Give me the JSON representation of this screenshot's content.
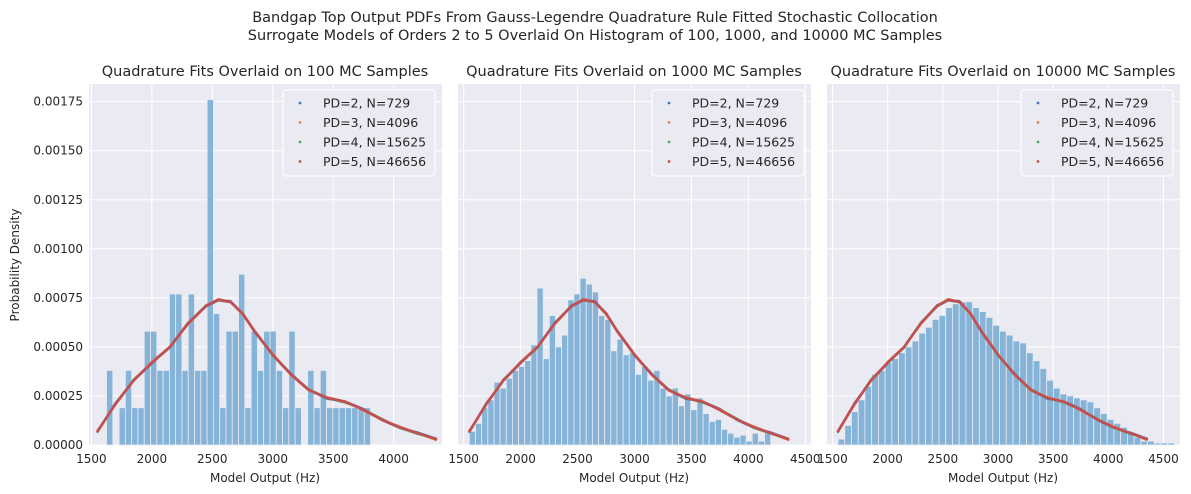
{
  "figure": {
    "suptitle_line1": "Bandgap Top Output PDFs From Gauss-Legendre Quadrature Rule Fitted Stochastic Collocation",
    "suptitle_line2": "Surrogate Models of Orders 2 to 5 Overlaid On Histogram of 100, 1000, and 10000 MC Samples"
  },
  "colors": {
    "background": "#eaeaf2",
    "grid": "#ffffff",
    "histogram": "#86b4d8",
    "series": [
      "#4c72b0",
      "#dd8452",
      "#55a868",
      "#c44e52"
    ]
  },
  "legend_placement": "top-right",
  "chart_data": [
    {
      "type": "bar",
      "title": "Quadrature Fits Overlaid on 100 MC Samples",
      "xlabel": "Model Output (Hz)",
      "ylabel": "Probability Density",
      "xlim": [
        1480,
        4400
      ],
      "ylim": [
        0,
        0.00184
      ],
      "xticks": [
        "1500",
        "2000",
        "2500",
        "3000",
        "3500",
        "4000"
      ],
      "xtick_values": [
        1500,
        2000,
        2500,
        3000,
        3500,
        4000
      ],
      "yticks": [
        "0.00000",
        "0.00025",
        "0.00050",
        "0.00075",
        "0.00100",
        "0.00125",
        "0.00150",
        "0.00175"
      ],
      "ytick_values": [
        0,
        0.00025,
        0.0005,
        0.00075,
        0.001,
        0.00125,
        0.0015,
        0.00175
      ],
      "grid": true,
      "histogram": {
        "bin_start": 1625,
        "bin_width": 52,
        "values": [
          0.00038,
          0,
          0.00019,
          0.00038,
          0.00019,
          0.00019,
          0.00058,
          0.00058,
          0.00038,
          0.00038,
          0.00077,
          0.00077,
          0.00038,
          0.00077,
          0.00038,
          0.00038,
          0.00176,
          0.00067,
          0.00019,
          0.00058,
          0.00058,
          0.00087,
          0.00019,
          0.00058,
          0.00038,
          0.00058,
          0.00058,
          0.00038,
          0.00019,
          0.00058,
          0.00019,
          0,
          0.00038,
          0.00019,
          0.00038,
          0.00019,
          0.00019,
          0.00019,
          0.00019,
          0.00019,
          0.00019,
          0.00019
        ]
      },
      "series": [
        {
          "name": "PD=2, N=729"
        },
        {
          "name": "PD=3, N=4096"
        },
        {
          "name": "PD=4, N=15625"
        },
        {
          "name": "PD=5, N=46656"
        }
      ],
      "pdf_curve": {
        "x": [
          1550,
          1700,
          1850,
          2000,
          2150,
          2300,
          2450,
          2550,
          2650,
          2750,
          2850,
          3000,
          3150,
          3300,
          3450,
          3600,
          3750,
          3900,
          4050,
          4200,
          4350
        ],
        "y": [
          7e-05,
          0.00021,
          0.00033,
          0.00042,
          0.0005,
          0.00062,
          0.00071,
          0.00074,
          0.00073,
          0.00067,
          0.00058,
          0.00046,
          0.00036,
          0.00028,
          0.00024,
          0.00022,
          0.00018,
          0.00013,
          9e-05,
          6e-05,
          3e-05
        ]
      }
    },
    {
      "type": "bar",
      "title": "Quadrature Fits Overlaid on 1000 MC Samples",
      "xlabel": "Model Output (Hz)",
      "ylabel": "",
      "xlim": [
        1450,
        4550
      ],
      "ylim": [
        0,
        0.00184
      ],
      "xticks": [
        "1500",
        "2000",
        "2500",
        "3000",
        "3500",
        "4000",
        "4500"
      ],
      "xtick_values": [
        1500,
        2000,
        2500,
        3000,
        3500,
        4000,
        4500
      ],
      "yticks": [],
      "grid": true,
      "histogram": {
        "bin_start": 1550,
        "bin_width": 54,
        "values": [
          7e-05,
          0.00011,
          0.00019,
          0.00023,
          0.00032,
          0.00029,
          0.00034,
          0.00038,
          0.0004,
          0.00043,
          0.00051,
          0.0008,
          0.00044,
          0.00066,
          0.0005,
          0.00056,
          0.00074,
          0.00077,
          0.00085,
          0.00082,
          0.00078,
          0.00066,
          0.00064,
          0.00048,
          0.00054,
          0.00046,
          0.00047,
          0.00036,
          0.0004,
          0.00033,
          0.00038,
          0.00029,
          0.00025,
          0.00029,
          0.0002,
          0.00026,
          0.00018,
          0.00024,
          0.00016,
          0.00012,
          0.00013,
          8e-05,
          6e-05,
          4e-05,
          5e-05,
          2e-05,
          6e-05,
          2e-05,
          6e-05
        ]
      },
      "series": [
        {
          "name": "PD=2, N=729"
        },
        {
          "name": "PD=3, N=4096"
        },
        {
          "name": "PD=4, N=15625"
        },
        {
          "name": "PD=5, N=46656"
        }
      ],
      "pdf_curve": {
        "x": [
          1550,
          1700,
          1850,
          2000,
          2150,
          2300,
          2450,
          2550,
          2650,
          2750,
          2850,
          3000,
          3150,
          3300,
          3450,
          3600,
          3750,
          3900,
          4050,
          4200,
          4350
        ],
        "y": [
          7e-05,
          0.00021,
          0.00033,
          0.00042,
          0.0005,
          0.00062,
          0.00071,
          0.00074,
          0.00073,
          0.00067,
          0.00058,
          0.00046,
          0.00036,
          0.00028,
          0.00024,
          0.00022,
          0.00018,
          0.00013,
          9e-05,
          6e-05,
          3e-05
        ]
      }
    },
    {
      "type": "bar",
      "title": "Quadrature Fits Overlaid on 10000 MC Samples",
      "xlabel": "Model Output (Hz)",
      "ylabel": "",
      "xlim": [
        1450,
        4650
      ],
      "ylim": [
        0,
        0.00184
      ],
      "xticks": [
        "1500",
        "2000",
        "2500",
        "3000",
        "3500",
        "4000",
        "4500"
      ],
      "xtick_values": [
        1500,
        2000,
        2500,
        3000,
        3500,
        4000,
        4500
      ],
      "yticks": [],
      "grid": true,
      "histogram": {
        "bin_start": 1550,
        "bin_width": 61,
        "values": [
          3e-05,
          0.0001,
          0.00017,
          0.00023,
          0.0003,
          0.00036,
          0.00038,
          0.00042,
          0.00044,
          0.00047,
          0.0005,
          0.00053,
          0.00057,
          0.0006,
          0.00064,
          0.00066,
          0.0007,
          0.00072,
          0.00073,
          0.00073,
          0.0007,
          0.00068,
          0.00065,
          0.00061,
          0.00058,
          0.00056,
          0.00053,
          0.00052,
          0.00047,
          0.00043,
          0.00039,
          0.00033,
          0.00029,
          0.00026,
          0.00025,
          0.00024,
          0.00023,
          0.00022,
          0.00019,
          0.00016,
          0.00013,
          0.00011,
          9e-05,
          6e-05,
          4e-05,
          2e-05,
          2e-05,
          1e-05,
          1e-05,
          1e-05
        ]
      },
      "series": [
        {
          "name": "PD=2, N=729"
        },
        {
          "name": "PD=3, N=4096"
        },
        {
          "name": "PD=4, N=15625"
        },
        {
          "name": "PD=5, N=46656"
        }
      ],
      "pdf_curve": {
        "x": [
          1550,
          1700,
          1850,
          2000,
          2150,
          2300,
          2450,
          2550,
          2650,
          2750,
          2850,
          3000,
          3150,
          3300,
          3450,
          3600,
          3750,
          3900,
          4050,
          4200,
          4350
        ],
        "y": [
          7e-05,
          0.00021,
          0.00033,
          0.00042,
          0.0005,
          0.00062,
          0.00071,
          0.00074,
          0.00073,
          0.00067,
          0.00058,
          0.00046,
          0.00036,
          0.00028,
          0.00024,
          0.00022,
          0.00018,
          0.00013,
          9e-05,
          6e-05,
          3e-05
        ]
      }
    }
  ]
}
